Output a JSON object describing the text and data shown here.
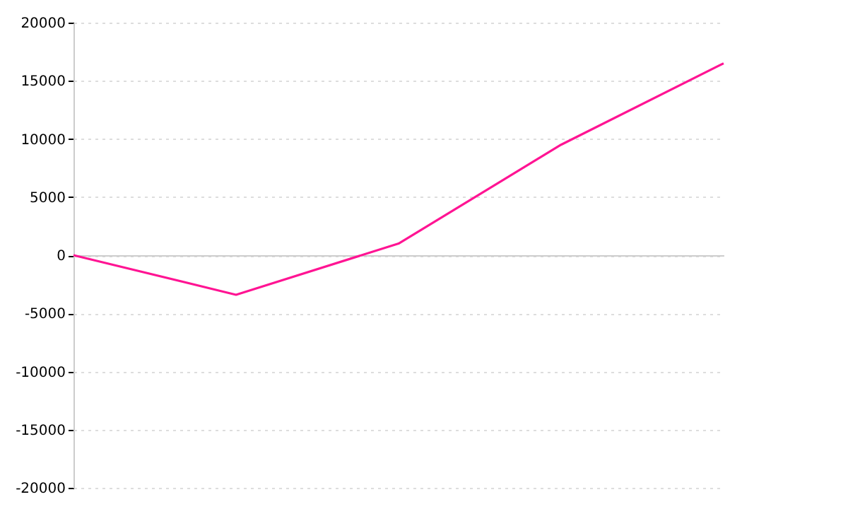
{
  "chart_data": {
    "type": "line",
    "categories": [
      null,
      null,
      null,
      null,
      null
    ],
    "series": [
      {
        "color": "#ff1493",
        "values": [
          0,
          -3400,
          1000,
          9500,
          16500
        ]
      }
    ],
    "ylim": [
      -20000,
      20000
    ],
    "yticks": [
      -20000,
      -15000,
      -10000,
      -5000,
      0,
      5000,
      10000,
      15000,
      20000
    ],
    "tick_labels": "y",
    "grid": "y",
    "marker": "none",
    "line_style": "solid"
  }
}
